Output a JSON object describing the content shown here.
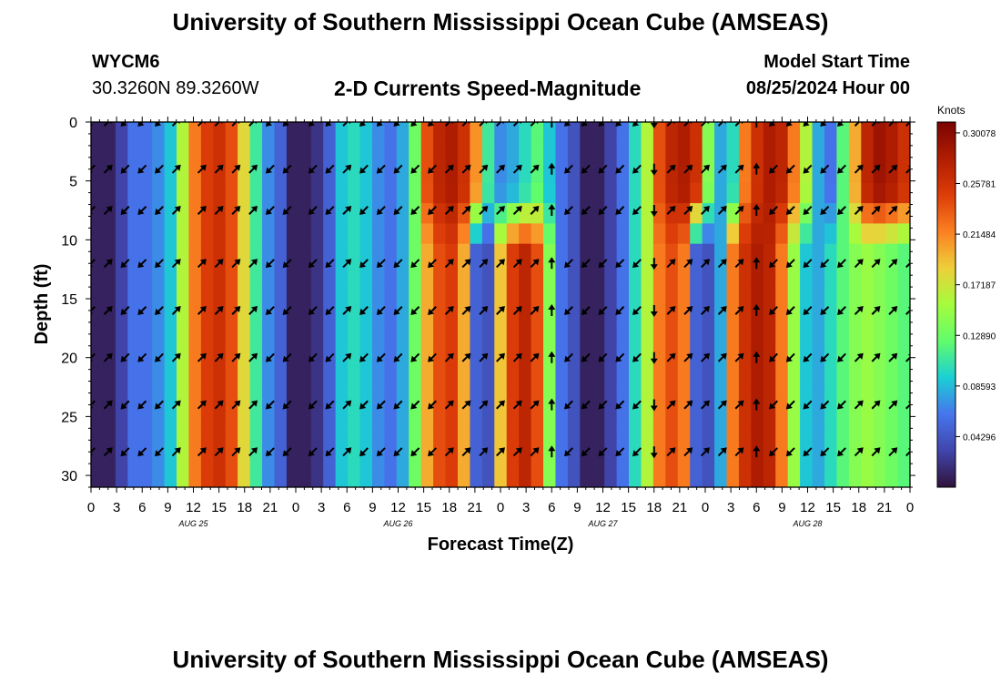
{
  "header": {
    "title": "University of Southern Mississippi Ocean Cube (AMSEAS)",
    "station": "WYCM6",
    "coords": "30.3260N  89.3260W",
    "subtitle": "2-D Currents Speed-Magnitude",
    "start_label": "Model Start Time",
    "start_value": "08/25/2024 Hour 00",
    "footer_title": "University of Southern Mississippi Ocean Cube (AMSEAS)"
  },
  "chart_data": {
    "type": "heatmap",
    "title": "2-D Currents Speed-Magnitude",
    "xlabel": "Forecast Time(Z)",
    "ylabel": "Depth (ft)",
    "xlim": [
      0,
      96
    ],
    "ylim": [
      0,
      31
    ],
    "x_ticks": [
      "0",
      "3",
      "6",
      "9",
      "12",
      "15",
      "18",
      "21",
      "0",
      "3",
      "6",
      "9",
      "12",
      "15",
      "18",
      "21",
      "0",
      "3",
      "6",
      "9",
      "12",
      "15",
      "18",
      "21",
      "0",
      "3",
      "6",
      "9",
      "12",
      "15",
      "18",
      "21",
      "0"
    ],
    "y_ticks": [
      "0",
      "5",
      "10",
      "15",
      "20",
      "25",
      "30"
    ],
    "date_labels": [
      {
        "label": "AUG 25",
        "hour": 12
      },
      {
        "label": "AUG 26",
        "hour": 36
      },
      {
        "label": "AUG 27",
        "hour": 60
      },
      {
        "label": "AUG 28",
        "hour": 84
      }
    ],
    "colorbar": {
      "label": "Knots",
      "ticks": [
        "0.04296",
        "0.08593",
        "0.12890",
        "0.17187",
        "0.21484",
        "0.25781",
        "0.30078"
      ],
      "vmin": 0.0,
      "vmax": 0.31
    },
    "speed_columns_surface": [
      0.01,
      0.01,
      0.03,
      0.06,
      0.06,
      0.07,
      0.09,
      0.16,
      0.22,
      0.25,
      0.26,
      0.24,
      0.18,
      0.11,
      0.07,
      0.05,
      0.01,
      0.01,
      0.02,
      0.05,
      0.09,
      0.1,
      0.09,
      0.07,
      0.06,
      0.08,
      0.13,
      0.24,
      0.27,
      0.28,
      0.26,
      0.21,
      0.11,
      0.07,
      0.08,
      0.1,
      0.12,
      0.09,
      0.06,
      0.04,
      0.01,
      0.01,
      0.03,
      0.06,
      0.1,
      0.16,
      0.24,
      0.27,
      0.28,
      0.26,
      0.14,
      0.08,
      0.1,
      0.22,
      0.26,
      0.28,
      0.27,
      0.22,
      0.16,
      0.08,
      0.06,
      0.12,
      0.2,
      0.27,
      0.29,
      0.28,
      0.26
    ],
    "speed_columns_deep": [
      0.01,
      0.01,
      0.03,
      0.06,
      0.06,
      0.07,
      0.09,
      0.16,
      0.22,
      0.25,
      0.26,
      0.24,
      0.18,
      0.11,
      0.07,
      0.05,
      0.01,
      0.01,
      0.02,
      0.05,
      0.09,
      0.1,
      0.09,
      0.07,
      0.06,
      0.08,
      0.13,
      0.2,
      0.24,
      0.25,
      0.2,
      0.05,
      0.04,
      0.19,
      0.25,
      0.27,
      0.24,
      0.14,
      0.06,
      0.04,
      0.01,
      0.01,
      0.03,
      0.06,
      0.1,
      0.16,
      0.22,
      0.24,
      0.22,
      0.05,
      0.04,
      0.08,
      0.22,
      0.26,
      0.28,
      0.27,
      0.22,
      0.15,
      0.09,
      0.08,
      0.1,
      0.12,
      0.14,
      0.15,
      0.14,
      0.13,
      0.12
    ],
    "vector_hours": [
      0,
      2,
      4,
      6,
      8,
      10,
      13,
      15,
      17,
      19,
      21,
      23,
      26,
      28,
      30,
      32,
      34,
      36,
      38,
      40,
      42,
      44,
      46,
      48,
      50,
      52,
      54,
      56,
      58,
      60,
      62,
      64,
      66,
      68,
      70,
      72,
      74,
      76,
      78,
      80,
      82,
      84,
      86,
      88,
      90,
      92,
      94,
      96
    ],
    "vector_depths": [
      0,
      4,
      7.5,
      12,
      16,
      20,
      24,
      28
    ],
    "vector_directions_deg": [
      225,
      45,
      225,
      225,
      225,
      45,
      45,
      45,
      45,
      45,
      225,
      225,
      225,
      225,
      45,
      225,
      225,
      225,
      225,
      225,
      45,
      45,
      45,
      45,
      45,
      45,
      0,
      225,
      225,
      225,
      225,
      225,
      180,
      45,
      45,
      45,
      45,
      45,
      0,
      225,
      225,
      225,
      225,
      225,
      45,
      45,
      45,
      45
    ]
  }
}
